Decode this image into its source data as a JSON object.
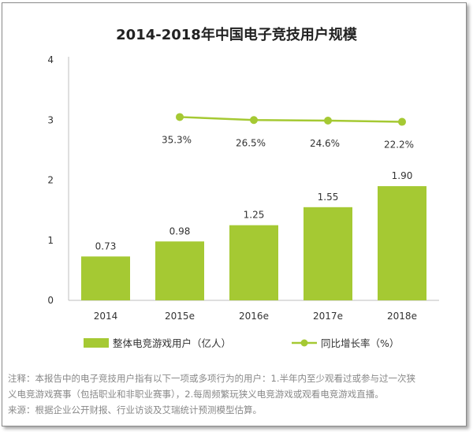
{
  "chart_data": {
    "type": "bar",
    "title": "2014-2018年中国电子竞技用户规模",
    "categories": [
      "2014",
      "2015e",
      "2016e",
      "2017e",
      "2018e"
    ],
    "yticks": [
      "0",
      "1",
      "2",
      "3",
      "4"
    ],
    "ylim": [
      0,
      4
    ],
    "grid": false,
    "series": [
      {
        "name": "整体电竞游戏用户（亿人）",
        "type": "bar",
        "values": [
          0.73,
          0.98,
          1.25,
          1.55,
          1.9
        ],
        "labels": [
          "0.73",
          "0.98",
          "1.25",
          "1.55",
          "1.90"
        ],
        "color": "#a5c933"
      },
      {
        "name": "同比增长率（%）",
        "type": "line",
        "values": [
          null,
          3.05,
          3.0,
          2.99,
          2.97
        ],
        "labels": [
          "",
          "35.3%",
          "26.5%",
          "24.6%",
          "22.2%"
        ],
        "color": "#a5c933"
      }
    ],
    "legend_position": "bottom"
  },
  "notes": {
    "line1": "注释：本报告中的电子竞技用户指有以下一项或多项行为的用户：1.半年内至少观看过或参与过一次狭",
    "line2": "义电竞游戏赛事（包括职业和非职业赛事），2.每周频繁玩狭义电竞游戏或观看电竞游戏直播。",
    "line3": "来源：根据企业公开财报、行业访谈及艾瑞统计预测模型估算。"
  }
}
